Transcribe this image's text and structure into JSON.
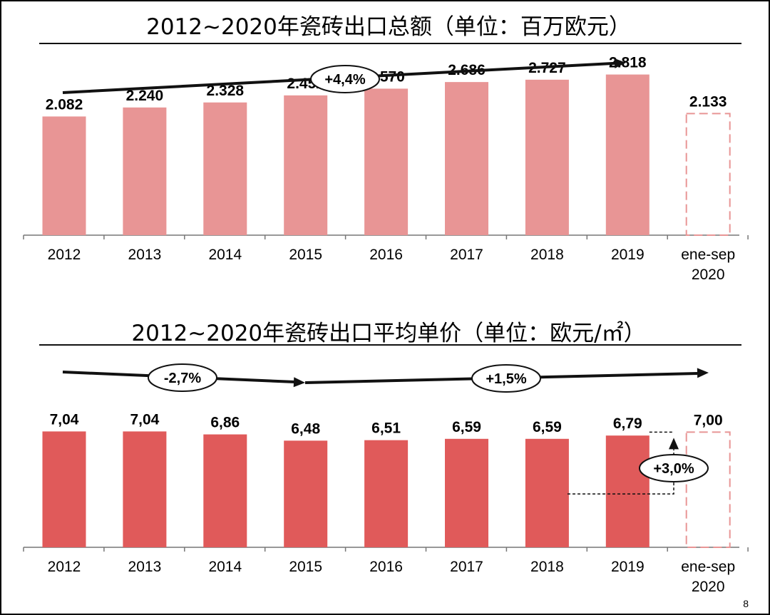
{
  "page_number": "8",
  "chart_data": [
    {
      "type": "bar",
      "title": "2012~2020年瓷砖出口总额（单位：百万欧元）",
      "categories": [
        "2012",
        "2013",
        "2014",
        "2015",
        "2016",
        "2017",
        "2018",
        "2019",
        "ene-sep 2020"
      ],
      "values": [
        2082,
        2240,
        2328,
        2452,
        2570,
        2686,
        2727,
        2818,
        2133
      ],
      "value_labels": [
        "2.082",
        "2.240",
        "2.328",
        "2.452",
        "2.570",
        "2.686",
        "2.727",
        "2.818",
        "2.133"
      ],
      "partial_last_bar": true,
      "ylim": [
        0,
        3400
      ],
      "grid": false,
      "bar_color": "#e89595",
      "dashed_color": "#e89595",
      "trend_arrows": [
        {
          "label": "+4,4%",
          "from": "2012",
          "to": "2019"
        }
      ]
    },
    {
      "type": "bar",
      "title": "2012~2020年瓷砖出口平均单价（单位：欧元/㎡）",
      "categories": [
        "2012",
        "2013",
        "2014",
        "2015",
        "2016",
        "2017",
        "2018",
        "2019",
        "ene-sep 2020"
      ],
      "values": [
        7.04,
        7.04,
        6.86,
        6.48,
        6.51,
        6.59,
        6.59,
        6.79,
        7.0
      ],
      "value_labels": [
        "7,04",
        "7,04",
        "6,86",
        "6,48",
        "6,51",
        "6,59",
        "6,59",
        "6,79",
        "7,00"
      ],
      "partial_last_bar": true,
      "ylim": [
        0,
        8.4
      ],
      "grid": false,
      "bar_color": "#e05a5a",
      "dashed_color": "#e89595",
      "trend_arrows": [
        {
          "label": "-2,7%",
          "from": "2012",
          "to": "2015"
        },
        {
          "label": "+1,5%",
          "from": "2015",
          "to": "ene-sep 2020"
        }
      ],
      "change_callout": {
        "label": "+3,0%",
        "from": "2019",
        "to": "ene-sep 2020"
      }
    }
  ]
}
